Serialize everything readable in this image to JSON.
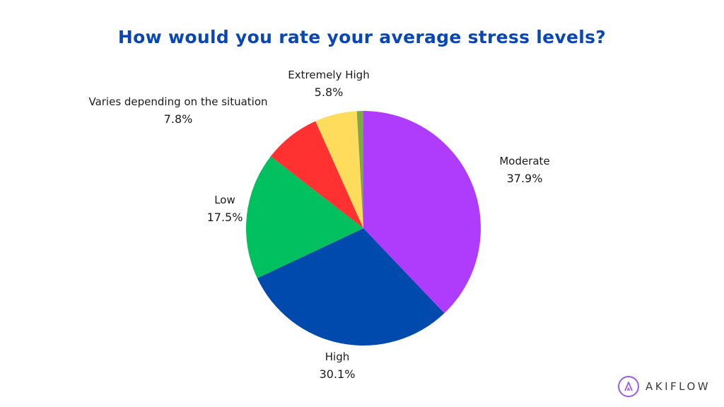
{
  "chart_data": {
    "type": "pie",
    "title": "How would you rate your average stress levels?",
    "slices": [
      {
        "label": "Moderate",
        "value": 37.9,
        "value_label": "37.9%",
        "color": "#af3bfc"
      },
      {
        "label": "High",
        "value": 30.1,
        "value_label": "30.1%",
        "color": "#004aad"
      },
      {
        "label": "Low",
        "value": 17.5,
        "value_label": "17.5%",
        "color": "#00c05f"
      },
      {
        "label": "Varies depending on the situation",
        "value": 7.8,
        "value_label": "7.8%",
        "color": "#ff3131"
      },
      {
        "label": "Extremely High",
        "value": 5.8,
        "value_label": "5.8%",
        "color": "#ffdc5c"
      },
      {
        "label": "",
        "value": 0.9,
        "value_label": "",
        "color": "#7da848"
      }
    ],
    "start_angle_deg": 0,
    "direction": "clockwise"
  },
  "brand": {
    "name": "AKIFLOW",
    "icon": "akiflow-logo-icon",
    "color": "#9b5de5"
  }
}
